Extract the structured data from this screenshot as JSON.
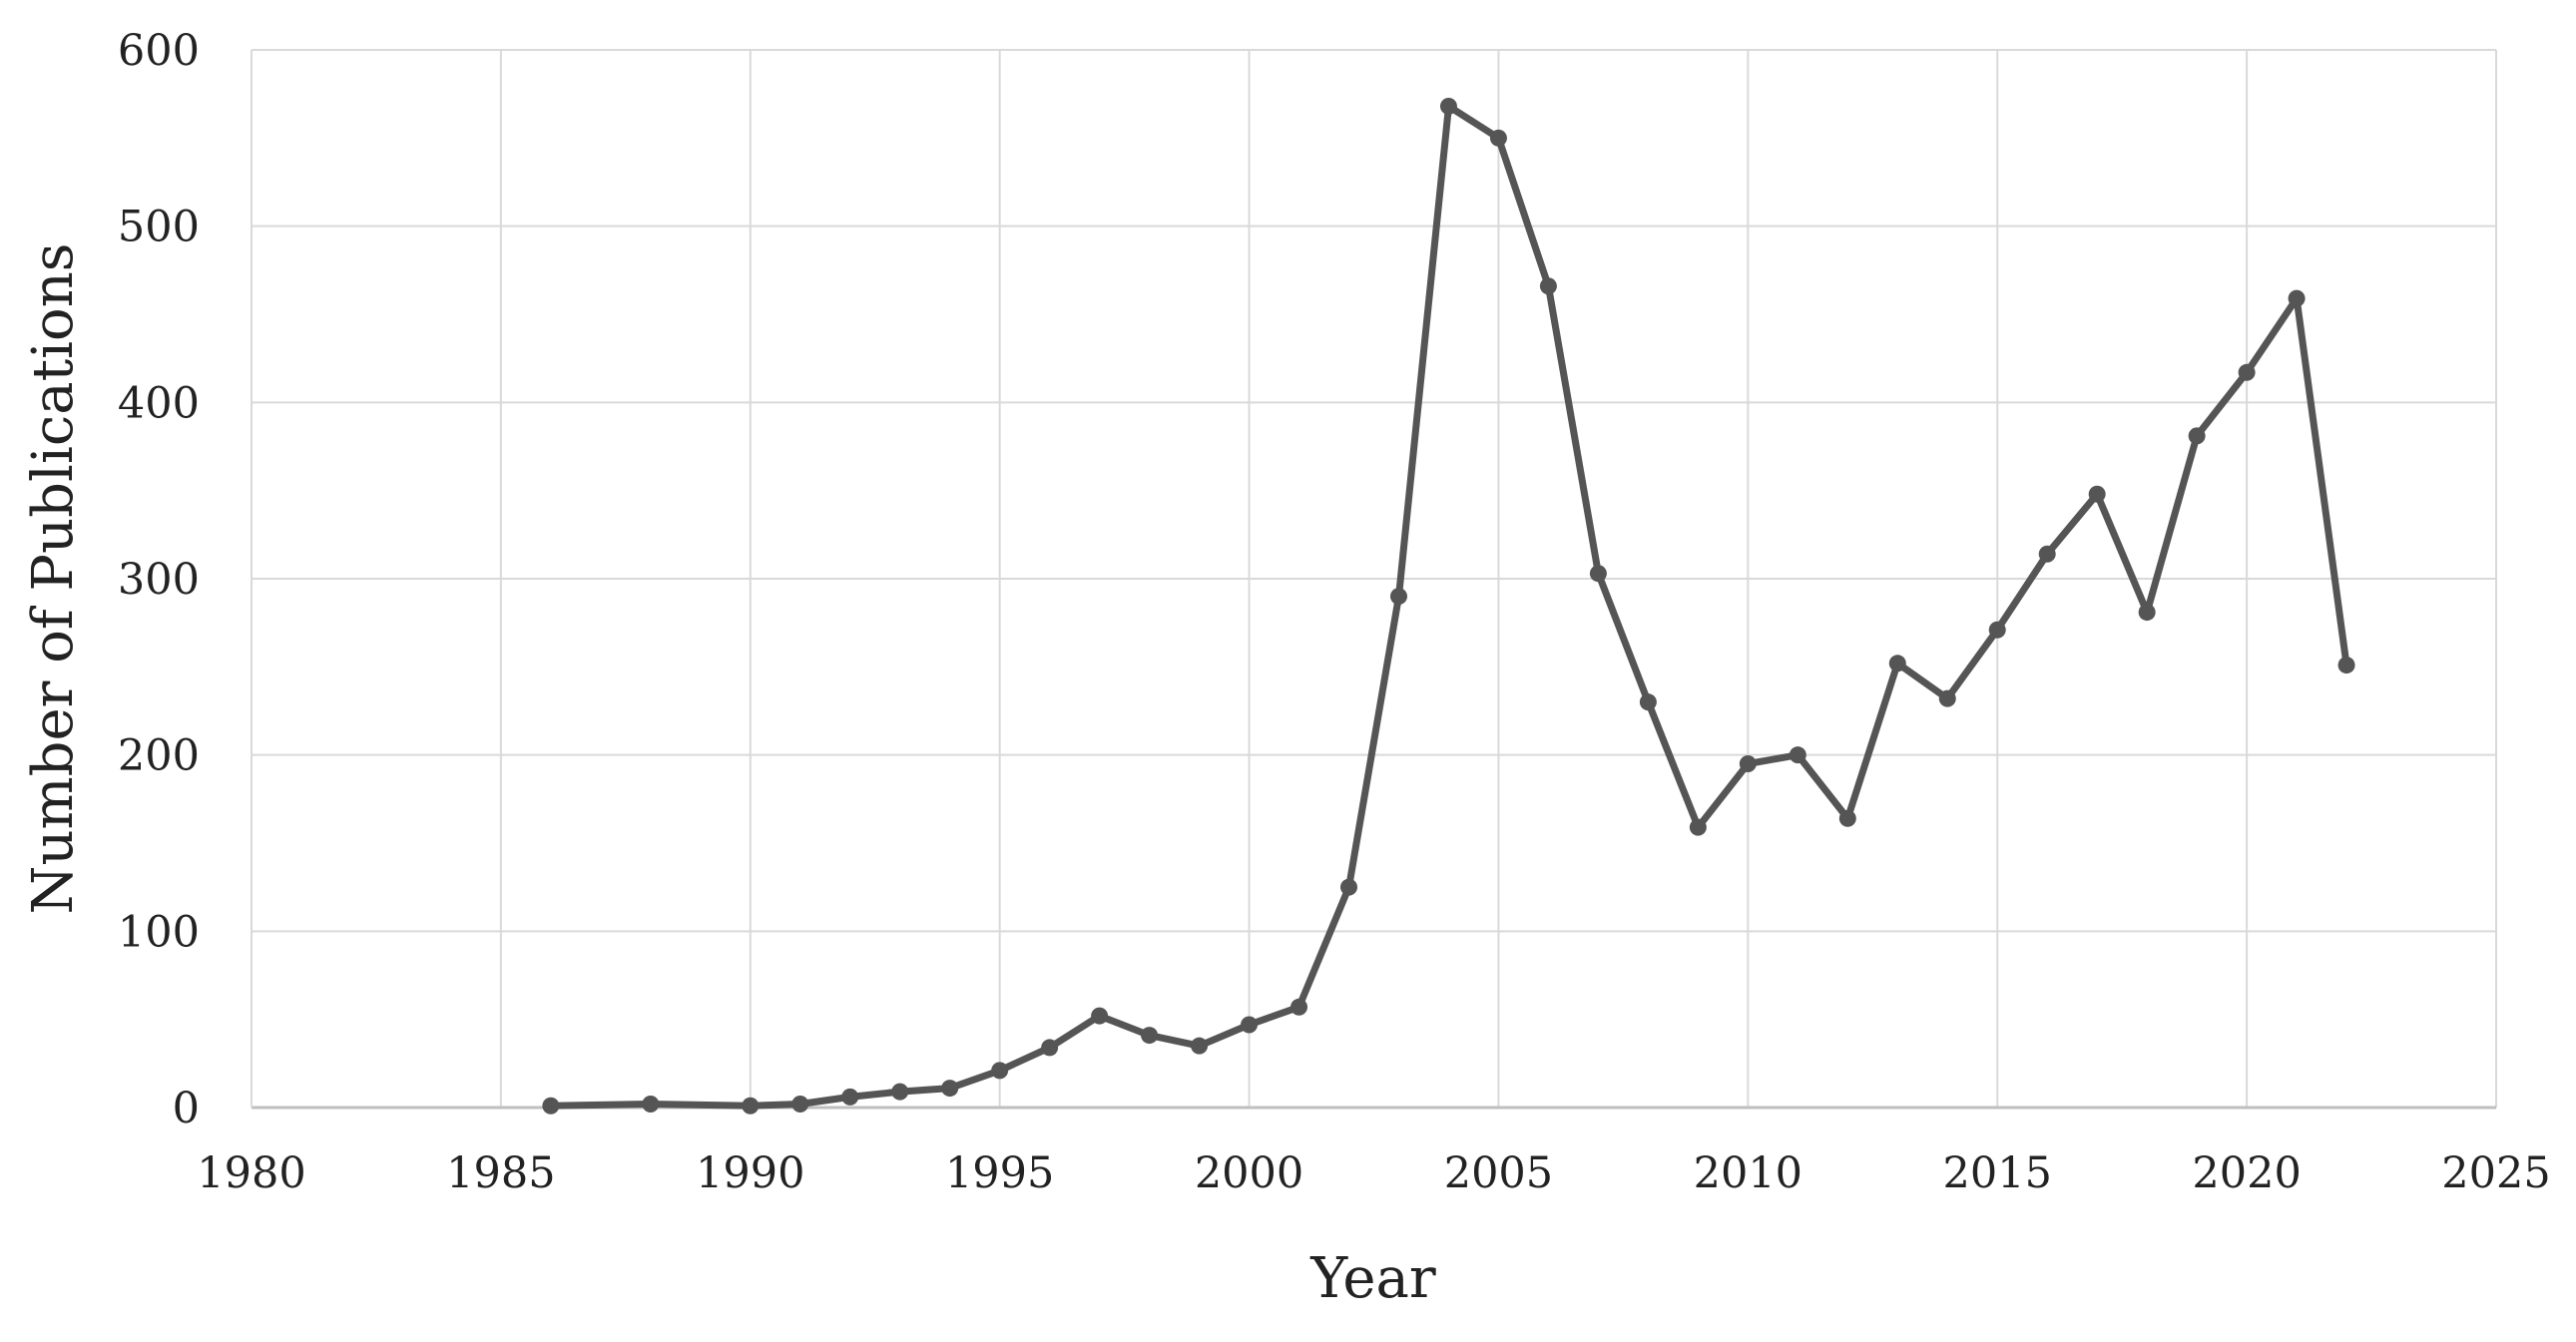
{
  "chart_data": {
    "type": "line",
    "title": "",
    "xlabel": "Year",
    "ylabel": "Number of Publications",
    "xlim": [
      1980,
      2025
    ],
    "ylim": [
      0,
      600
    ],
    "x_ticks": [
      "1980",
      "1985",
      "1990",
      "1995",
      "2000",
      "2005",
      "2010",
      "2015",
      "2020",
      "2025"
    ],
    "y_ticks": [
      "0",
      "100",
      "200",
      "300",
      "400",
      "500",
      "600"
    ],
    "grid": true,
    "legend": "none",
    "colors": {
      "line": "#555555",
      "grid": "#d9d9d9",
      "axis": "#bfbfbf"
    },
    "series": [
      {
        "x": [
          1986,
          1988,
          1990,
          1991,
          1992,
          1993,
          1994,
          1995,
          1996,
          1997,
          1998,
          1999,
          2000,
          2001,
          2002,
          2003,
          2004,
          2005,
          2006,
          2007,
          2008,
          2009,
          2010,
          2011,
          2012,
          2013,
          2014,
          2015,
          2016,
          2017,
          2018,
          2019,
          2020,
          2021,
          2022
        ],
        "values": [
          1,
          2,
          1,
          2,
          6,
          9,
          11,
          21,
          34,
          52,
          41,
          35,
          47,
          57,
          125,
          290,
          568,
          550,
          466,
          303,
          230,
          159,
          195,
          200,
          164,
          252,
          232,
          271,
          314,
          348,
          281,
          381,
          417,
          459,
          251
        ]
      }
    ]
  }
}
